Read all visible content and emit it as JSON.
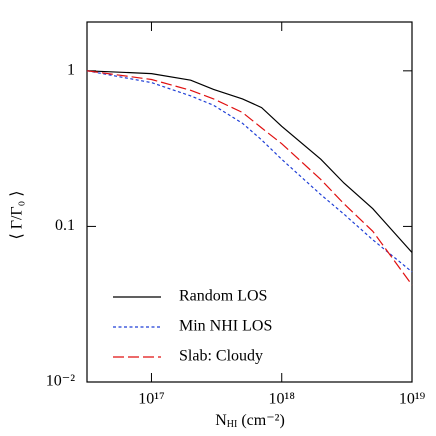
{
  "chart_data": {
    "type": "line",
    "xlabel": {
      "main": "N",
      "sub": "HI",
      "rest": " (cm⁻²)"
    },
    "ylabel": "⟨ Γ/Γ₀ ⟩",
    "x": [
      3.2e+16,
      1e+17,
      2e+17,
      3e+17,
      5e+17,
      7e+17,
      1e+18,
      2e+18,
      3e+18,
      5e+18,
      1e+19
    ],
    "series": [
      {
        "name": "Random LOS",
        "color": "#000000",
        "dash": "none",
        "values": [
          1.0,
          0.96,
          0.87,
          0.76,
          0.66,
          0.58,
          0.44,
          0.27,
          0.19,
          0.13,
          0.068
        ]
      },
      {
        "name": "Min NHI LOS",
        "color": "#1f3fd6",
        "dash": "3,2.5",
        "values": [
          1.0,
          0.84,
          0.69,
          0.6,
          0.46,
          0.36,
          0.27,
          0.16,
          0.12,
          0.082,
          0.051
        ]
      },
      {
        "name": "Slab: Cloudy",
        "color": "#e01010",
        "dash": "11,4",
        "values": [
          1.0,
          0.88,
          0.75,
          0.66,
          0.54,
          0.43,
          0.34,
          0.2,
          0.14,
          0.093,
          0.042
        ]
      }
    ],
    "xlim": [
      3.2e+16,
      1e+19
    ],
    "ylim": [
      0.01,
      2.06
    ],
    "xticks": [
      {
        "value": 1e+17,
        "label": "10¹⁷"
      },
      {
        "value": 1e+18,
        "label": "10¹⁸"
      },
      {
        "value": 1e+19,
        "label": "10¹⁹"
      }
    ],
    "yticks": [
      {
        "value": 0.01,
        "label": "10⁻²"
      },
      0.1,
      1
    ],
    "xscale": "log",
    "yscale": "log",
    "legend": "lower left"
  }
}
